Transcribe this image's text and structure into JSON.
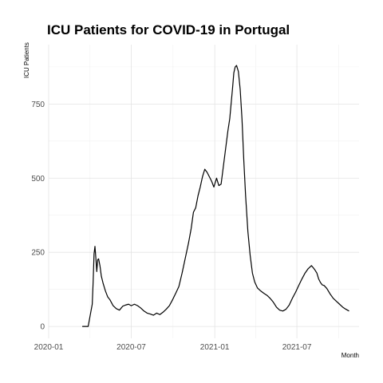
{
  "chart_data": {
    "type": "line",
    "title": "ICU Patients for COVID-19 in Portugal",
    "xlabel": "Month",
    "ylabel": "ICU Patients",
    "x_ticks": [
      "2020-01",
      "2020-07",
      "2021-01",
      "2021-07"
    ],
    "y_ticks": [
      0,
      250,
      500,
      750
    ],
    "xlim": [
      "2020-01-01",
      "2021-11-15"
    ],
    "ylim": [
      -40,
      950
    ],
    "grid": true,
    "series": [
      {
        "x": [
          "2020-03-15",
          "2020-03-28",
          "2020-03-31",
          "2020-04-03",
          "2020-04-06",
          "2020-04-08",
          "2020-04-10",
          "2020-04-12",
          "2020-04-14",
          "2020-04-16",
          "2020-04-18",
          "2020-04-20",
          "2020-04-23",
          "2020-04-26",
          "2020-04-30",
          "2020-05-05",
          "2020-05-10",
          "2020-05-15",
          "2020-05-22",
          "2020-05-29",
          "2020-06-05",
          "2020-06-12",
          "2020-06-18",
          "2020-06-25",
          "2020-07-01",
          "2020-07-08",
          "2020-07-15",
          "2020-07-22",
          "2020-07-29",
          "2020-08-05",
          "2020-08-12",
          "2020-08-19",
          "2020-08-26",
          "2020-09-02",
          "2020-09-09",
          "2020-09-16",
          "2020-09-23",
          "2020-09-30",
          "2020-10-07",
          "2020-10-14",
          "2020-10-21",
          "2020-10-28",
          "2020-11-04",
          "2020-11-10",
          "2020-11-15",
          "2020-11-20",
          "2020-11-25",
          "2020-11-30",
          "2020-12-05",
          "2020-12-10",
          "2020-12-15",
          "2020-12-20",
          "2020-12-25",
          "2020-12-30",
          "2021-01-05",
          "2021-01-10",
          "2021-01-15",
          "2021-01-20",
          "2021-01-25",
          "2021-01-30",
          "2021-02-03",
          "2021-02-06",
          "2021-02-09",
          "2021-02-12",
          "2021-02-15",
          "2021-02-18",
          "2021-02-22",
          "2021-02-26",
          "2021-03-02",
          "2021-03-06",
          "2021-03-10",
          "2021-03-15",
          "2021-03-20",
          "2021-03-25",
          "2021-03-30",
          "2021-04-05",
          "2021-04-12",
          "2021-04-19",
          "2021-04-26",
          "2021-05-03",
          "2021-05-10",
          "2021-05-17",
          "2021-05-24",
          "2021-05-31",
          "2021-06-07",
          "2021-06-14",
          "2021-06-21",
          "2021-06-28",
          "2021-07-05",
          "2021-07-12",
          "2021-07-19",
          "2021-07-26",
          "2021-08-02",
          "2021-08-06",
          "2021-08-10",
          "2021-08-14",
          "2021-08-18",
          "2021-08-22",
          "2021-08-26",
          "2021-08-30",
          "2021-09-05",
          "2021-09-12",
          "2021-09-19",
          "2021-09-26",
          "2021-10-03",
          "2021-10-10",
          "2021-10-17",
          "2021-10-24"
        ],
        "y": [
          0,
          0,
          25,
          50,
          75,
          150,
          245,
          270,
          230,
          185,
          225,
          228,
          205,
          170,
          145,
          120,
          100,
          90,
          70,
          60,
          55,
          68,
          72,
          75,
          70,
          75,
          70,
          62,
          52,
          45,
          42,
          38,
          45,
          40,
          48,
          58,
          70,
          90,
          112,
          135,
          180,
          230,
          280,
          330,
          385,
          400,
          440,
          470,
          505,
          530,
          520,
          505,
          490,
          470,
          500,
          475,
          480,
          540,
          600,
          660,
          700,
          750,
          800,
          855,
          875,
          880,
          860,
          800,
          700,
          560,
          440,
          320,
          240,
          180,
          150,
          130,
          120,
          112,
          105,
          95,
          82,
          65,
          55,
          52,
          58,
          72,
          95,
          115,
          138,
          160,
          180,
          195,
          205,
          198,
          190,
          180,
          160,
          148,
          140,
          138,
          128,
          110,
          95,
          85,
          75,
          65,
          58,
          52
        ]
      }
    ]
  }
}
